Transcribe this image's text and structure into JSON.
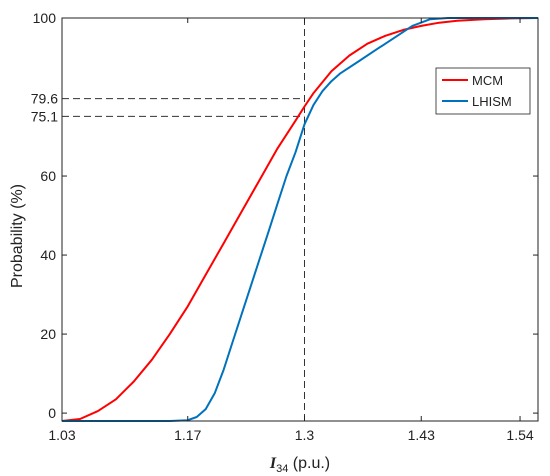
{
  "chart_data": {
    "type": "line",
    "xlabel": {
      "main": "I",
      "sub": "34",
      "unit": " (p.u.)"
    },
    "ylabel": "Probability (%)",
    "xlim": [
      1.03,
      1.56
    ],
    "ylim": [
      -2,
      100
    ],
    "xticks": [
      1.03,
      1.17,
      1.3,
      1.43,
      1.54
    ],
    "xtick_labels": [
      "1.03",
      "1.17",
      "1.3",
      "1.43",
      "1.54"
    ],
    "yticks": [
      0,
      20,
      40,
      60,
      100
    ],
    "ytick_labels": [
      "0",
      "20",
      "40",
      "60",
      "100"
    ],
    "grid": false,
    "legend_position": "top-right",
    "reference_lines": {
      "vertical_x": 1.3,
      "horizontal": [
        {
          "y": 79.6,
          "label": "79.6"
        },
        {
          "y": 75.1,
          "label": "75.1"
        }
      ]
    },
    "series": [
      {
        "name": "MCM",
        "color": "#ff0000",
        "x": [
          1.03,
          1.05,
          1.07,
          1.09,
          1.11,
          1.13,
          1.15,
          1.17,
          1.19,
          1.21,
          1.23,
          1.25,
          1.27,
          1.29,
          1.3,
          1.31,
          1.33,
          1.35,
          1.37,
          1.39,
          1.41,
          1.43,
          1.45,
          1.47,
          1.5,
          1.53,
          1.56
        ],
        "y": [
          -2,
          -1.5,
          0.5,
          3.5,
          8,
          13.5,
          20,
          27,
          35,
          43,
          51,
          59,
          67,
          74,
          77.6,
          81,
          86.5,
          90.5,
          93.5,
          95.5,
          97,
          98,
          98.8,
          99.3,
          99.7,
          99.9,
          100
        ]
      },
      {
        "name": "LHISM",
        "color": "#0072bd",
        "x": [
          1.03,
          1.1,
          1.15,
          1.17,
          1.18,
          1.19,
          1.2,
          1.21,
          1.22,
          1.23,
          1.24,
          1.25,
          1.26,
          1.27,
          1.28,
          1.29,
          1.3,
          1.31,
          1.32,
          1.33,
          1.34,
          1.36,
          1.38,
          1.4,
          1.42,
          1.44,
          1.46,
          1.5,
          1.56
        ],
        "y": [
          -2,
          -2,
          -2,
          -1.8,
          -1,
          1,
          5,
          11,
          18,
          25,
          32,
          39,
          46,
          53,
          60,
          66,
          73.1,
          78,
          81.5,
          84,
          86,
          89,
          92,
          95,
          98,
          99.7,
          100,
          100,
          100
        ]
      }
    ]
  }
}
